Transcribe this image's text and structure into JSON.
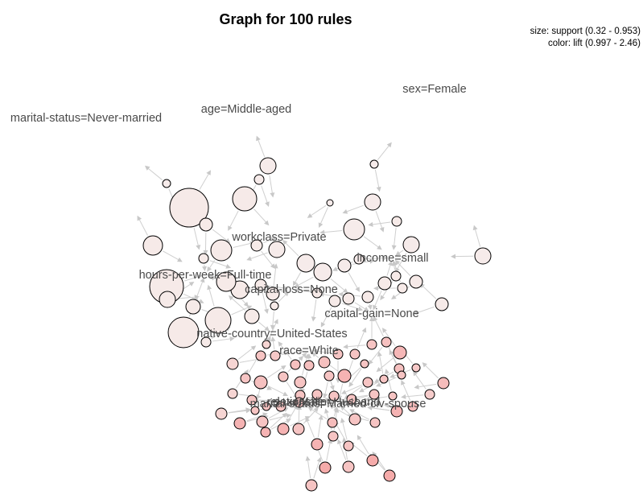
{
  "title": "Graph for 100 rules",
  "legend": {
    "size_text": "size: support (0.32 - 0.953)",
    "color_text": "color: lift (0.997 - 2.46)"
  },
  "colors": {
    "low_lift": "#f6eeec",
    "high_lift": "#f59a9a",
    "edge": "#cfcfcf",
    "label": "#4a4a4a"
  },
  "items": [
    {
      "id": "sex",
      "label": "sex=Female"
    },
    {
      "id": "age",
      "label": "age=Middle-aged"
    },
    {
      "id": "ms_never",
      "label": "marital-status=Never-married"
    },
    {
      "id": "workclass",
      "label": "workclass=Private"
    },
    {
      "id": "income",
      "label": "income=small"
    },
    {
      "id": "hours",
      "label": "hours-per-week=Full-time"
    },
    {
      "id": "caploss",
      "label": "capital-loss=None"
    },
    {
      "id": "capgain",
      "label": "capital-gain=None"
    },
    {
      "id": "native",
      "label": "native-country=United-States"
    },
    {
      "id": "race",
      "label": "race=White"
    },
    {
      "id": "ms_civ",
      "label": "marital-status=Married-civ-spouse"
    },
    {
      "id": "sex_male",
      "label": "sex=Male"
    },
    {
      "id": "rel_husband",
      "label": "relationship=Husband"
    }
  ]
}
